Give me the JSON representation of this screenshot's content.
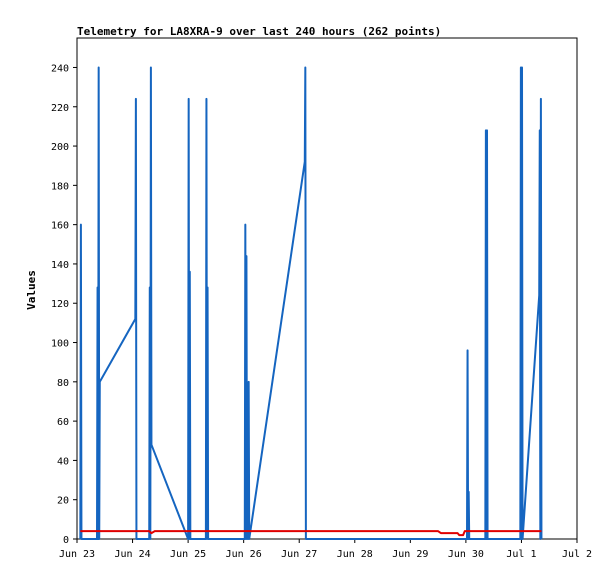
{
  "chart_data": {
    "type": "line",
    "title": "Telemetry for LA8XRA-9 over last 240 hours (262 points)",
    "ylabel": "Values",
    "xlabel": "",
    "ylim": [
      0,
      255
    ],
    "xlim": [
      0,
      9
    ],
    "yticks": [
      0,
      20,
      40,
      60,
      80,
      100,
      120,
      140,
      160,
      180,
      200,
      220,
      240
    ],
    "xticks": [
      {
        "v": 0,
        "label": "Jun 23"
      },
      {
        "v": 1,
        "label": "Jun 24"
      },
      {
        "v": 2,
        "label": "Jun 25"
      },
      {
        "v": 3,
        "label": "Jun 26"
      },
      {
        "v": 4,
        "label": "Jun 27"
      },
      {
        "v": 5,
        "label": "Jun 28"
      },
      {
        "v": 6,
        "label": "Jun 29"
      },
      {
        "v": 7,
        "label": "Jun 30"
      },
      {
        "v": 8,
        "label": "Jul 1"
      },
      {
        "v": 9,
        "label": "Jul 2"
      }
    ],
    "grid": false,
    "legend": "none",
    "series": [
      {
        "color": "#1565c0",
        "points": [
          [
            0.06,
            0
          ],
          [
            0.07,
            160
          ],
          [
            0.08,
            0
          ],
          [
            0.36,
            0
          ],
          [
            0.37,
            128
          ],
          [
            0.38,
            0
          ],
          [
            0.39,
            240
          ],
          [
            0.4,
            0
          ],
          [
            0.41,
            80
          ],
          [
            1.05,
            112
          ],
          [
            1.06,
            224
          ],
          [
            1.07,
            0
          ],
          [
            1.3,
            0
          ],
          [
            1.31,
            128
          ],
          [
            1.32,
            0
          ],
          [
            1.33,
            240
          ],
          [
            1.34,
            48
          ],
          [
            2.0,
            0
          ],
          [
            2.01,
            224
          ],
          [
            2.02,
            0
          ],
          [
            2.03,
            136
          ],
          [
            2.04,
            0
          ],
          [
            2.32,
            0
          ],
          [
            2.33,
            224
          ],
          [
            2.34,
            0
          ],
          [
            2.35,
            128
          ],
          [
            2.36,
            0
          ],
          [
            3.02,
            0
          ],
          [
            3.03,
            160
          ],
          [
            3.04,
            0
          ],
          [
            3.05,
            144
          ],
          [
            3.06,
            0
          ],
          [
            3.07,
            32
          ],
          [
            3.08,
            0
          ],
          [
            3.09,
            80
          ],
          [
            3.1,
            0
          ],
          [
            4.1,
            192
          ],
          [
            4.11,
            240
          ],
          [
            4.12,
            0
          ],
          [
            7.02,
            0
          ],
          [
            7.03,
            96
          ],
          [
            7.04,
            0
          ],
          [
            7.05,
            24
          ],
          [
            7.06,
            0
          ],
          [
            7.35,
            0
          ],
          [
            7.36,
            208
          ],
          [
            7.37,
            0
          ],
          [
            7.38,
            208
          ],
          [
            7.39,
            0
          ],
          [
            7.98,
            0
          ],
          [
            7.99,
            240
          ],
          [
            8.0,
            0
          ],
          [
            8.01,
            240
          ],
          [
            8.02,
            0
          ],
          [
            8.32,
            124
          ],
          [
            8.33,
            208
          ],
          [
            8.34,
            0
          ],
          [
            8.35,
            224
          ],
          [
            8.36,
            0
          ]
        ]
      },
      {
        "color": "#e00000",
        "points": [
          [
            0.06,
            4
          ],
          [
            1.3,
            4
          ],
          [
            1.34,
            3
          ],
          [
            1.4,
            4
          ],
          [
            6.5,
            4
          ],
          [
            6.55,
            3
          ],
          [
            6.85,
            3
          ],
          [
            6.88,
            2
          ],
          [
            6.95,
            2
          ],
          [
            6.98,
            4
          ],
          [
            8.36,
            4
          ]
        ]
      }
    ]
  }
}
